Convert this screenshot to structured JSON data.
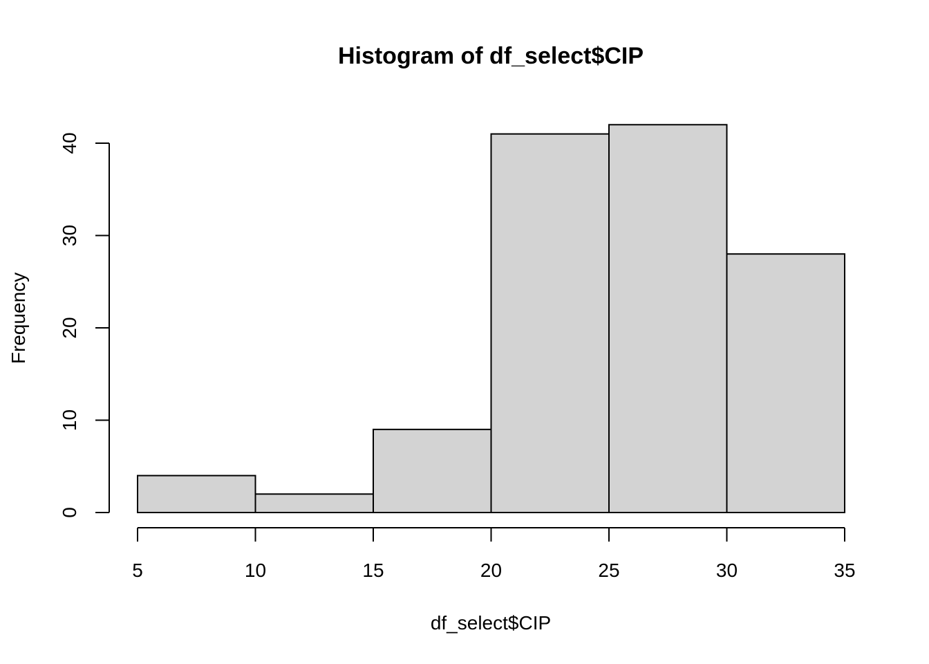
{
  "chart_data": {
    "type": "bar",
    "title": "Histogram of df_select$CIP",
    "xlabel": "df_select$CIP",
    "ylabel": "Frequency",
    "bins": [
      {
        "from": 5,
        "to": 10,
        "count": 4
      },
      {
        "from": 10,
        "to": 15,
        "count": 2
      },
      {
        "from": 15,
        "to": 20,
        "count": 9
      },
      {
        "from": 20,
        "to": 25,
        "count": 41
      },
      {
        "from": 25,
        "to": 30,
        "count": 42
      },
      {
        "from": 30,
        "to": 35,
        "count": 28
      }
    ],
    "xticks": [
      5,
      10,
      15,
      20,
      25,
      30,
      35
    ],
    "yticks": [
      0,
      10,
      20,
      30,
      40
    ],
    "xlim": [
      5,
      35
    ],
    "ylim": [
      0,
      42
    ],
    "bar_color": "#d3d3d3",
    "grid": false,
    "legend": "none"
  }
}
